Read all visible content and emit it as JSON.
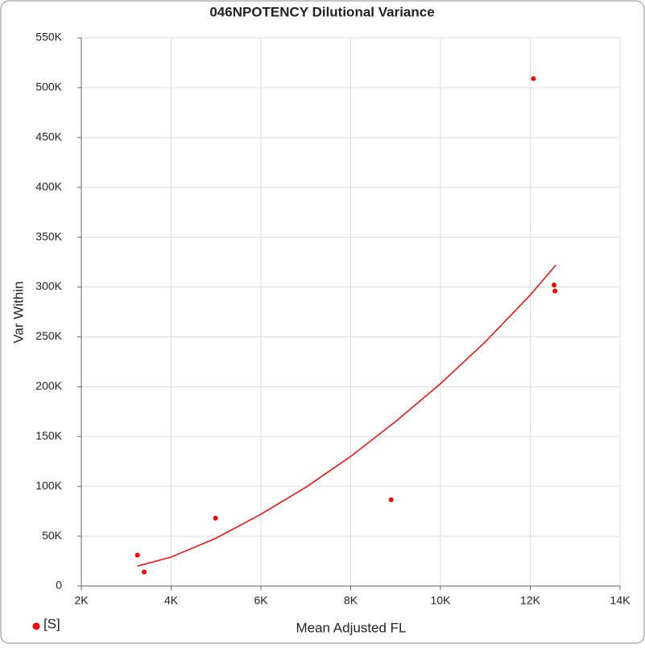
{
  "chart_data": {
    "type": "scatter",
    "title": "046NPOTENCY Dilutional Variance",
    "x_label": "Mean Adjusted FL",
    "y_label": "Var Within",
    "xlim": [
      2000,
      14000
    ],
    "xticks": [
      {
        "value": 2000,
        "label": "2K"
      },
      {
        "value": 4000,
        "label": "4K"
      },
      {
        "value": 6000,
        "label": "6K"
      },
      {
        "value": 8000,
        "label": "8K"
      },
      {
        "value": 10000,
        "label": "10K"
      },
      {
        "value": 12000,
        "label": "12K"
      },
      {
        "value": 14000,
        "label": "14K"
      }
    ],
    "ylim": [
      0,
      550000
    ],
    "yticks": [
      0,
      {
        "value": 50000,
        "label": "50K"
      },
      {
        "value": 100000,
        "label": "100K"
      },
      {
        "value": 150000,
        "label": "150K"
      },
      {
        "value": 200000,
        "label": "200K"
      },
      {
        "value": 250000,
        "label": "250K"
      },
      {
        "value": 300000,
        "label": "300K"
      },
      {
        "value": 350000,
        "label": "350K"
      },
      {
        "value": 400000,
        "label": "400K"
      },
      {
        "value": 450000,
        "label": "450K"
      },
      {
        "value": 500000,
        "label": "500K"
      },
      {
        "value": 550000,
        "label": "550K"
      }
    ],
    "grid": true,
    "series": [
      {
        "name": "[S]",
        "color": "#ff0000",
        "x": [
          3250,
          3400,
          4990,
          8900,
          12070,
          12530,
          12550
        ],
        "values": [
          31000,
          14000,
          68000,
          86500,
          509000,
          302000,
          296000
        ]
      }
    ],
    "fit": {
      "color": "#ff0000",
      "x": [
        3250,
        4000,
        5000,
        6000,
        7000,
        8000,
        9000,
        10000,
        11000,
        12000,
        12570
      ],
      "values": [
        20000,
        29000,
        48000,
        72000,
        99000,
        130000,
        165000,
        203000,
        245000,
        292000,
        322000
      ]
    },
    "legend": "bottom-left"
  }
}
